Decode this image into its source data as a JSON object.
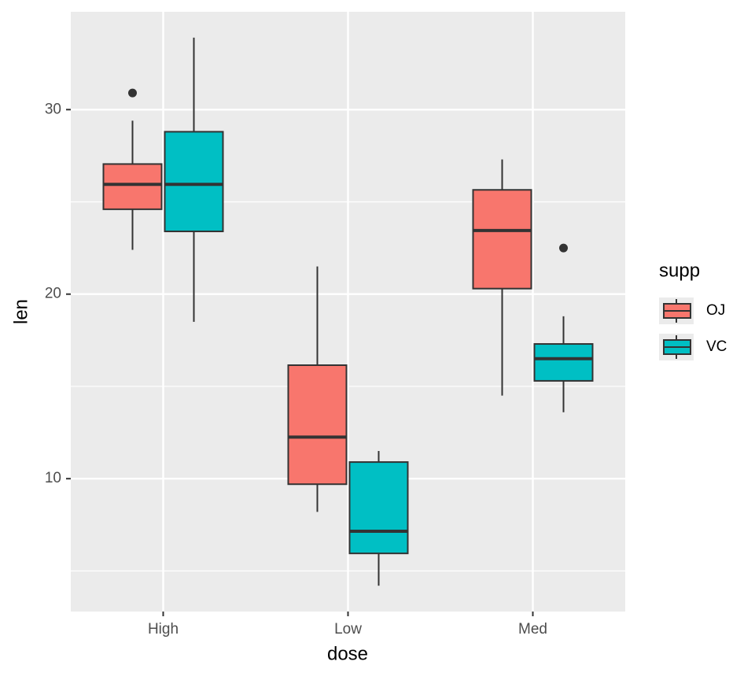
{
  "chart_data": {
    "type": "boxplot",
    "x_label": "dose",
    "y_label": "len",
    "legend_title": "supp",
    "categories": [
      "High",
      "Low",
      "Med"
    ],
    "series": [
      {
        "name": "OJ",
        "color": "#F8766D",
        "boxes": [
          {
            "whisker_low": 22.4,
            "q1": 24.6,
            "median": 25.95,
            "q3": 27.05,
            "whisker_high": 29.4,
            "outliers": [
              30.9
            ]
          },
          {
            "whisker_low": 8.2,
            "q1": 9.7,
            "median": 12.25,
            "q3": 16.15,
            "whisker_high": 21.5,
            "outliers": []
          },
          {
            "whisker_low": 14.5,
            "q1": 20.3,
            "median": 23.45,
            "q3": 25.65,
            "whisker_high": 27.3,
            "outliers": []
          }
        ]
      },
      {
        "name": "VC",
        "color": "#00BFC4",
        "boxes": [
          {
            "whisker_low": 18.5,
            "q1": 23.4,
            "median": 25.95,
            "q3": 28.8,
            "whisker_high": 33.9,
            "outliers": []
          },
          {
            "whisker_low": 4.2,
            "q1": 5.95,
            "median": 7.15,
            "q3": 10.9,
            "whisker_high": 11.5,
            "outliers": []
          },
          {
            "whisker_low": 13.6,
            "q1": 15.3,
            "median": 16.5,
            "q3": 17.3,
            "whisker_high": 18.8,
            "outliers": [
              22.5
            ]
          }
        ]
      }
    ],
    "ylim": [
      2.8,
      35.3
    ],
    "yticks": [
      10,
      20,
      30
    ],
    "minor_yticks": [
      5,
      15,
      25
    ],
    "grid": true
  }
}
